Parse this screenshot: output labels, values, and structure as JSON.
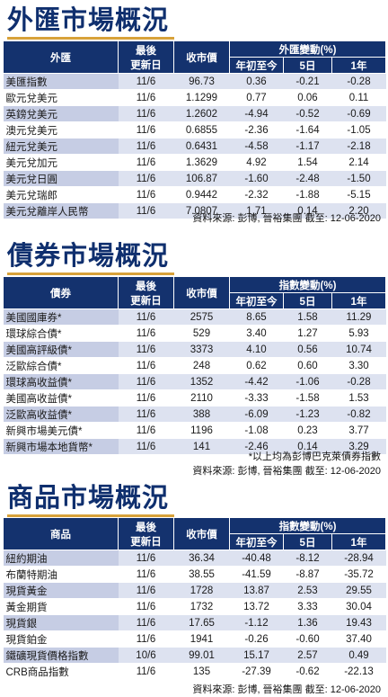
{
  "fx": {
    "title": "外匯市場概況",
    "headers": {
      "name": "外匯",
      "date_line1": "最後",
      "date_line2": "更新日",
      "close": "收市價",
      "change_group": "外匯變動(%)",
      "ytd": "年初至今",
      "d5": "5日",
      "y1": "1年"
    },
    "rows": [
      [
        "美匯指數",
        "11/6",
        "96.73",
        "0.36",
        "-0.21",
        "-0.28"
      ],
      [
        "歐元兌美元",
        "11/6",
        "1.1299",
        "0.77",
        "0.06",
        "0.11"
      ],
      [
        "英鎊兌美元",
        "11/6",
        "1.2602",
        "-4.94",
        "-0.52",
        "-0.69"
      ],
      [
        "澳元兌美元",
        "11/6",
        "0.6855",
        "-2.36",
        "-1.64",
        "-1.05"
      ],
      [
        "紐元兌美元",
        "11/6",
        "0.6431",
        "-4.58",
        "-1.17",
        "-2.18"
      ],
      [
        "美元兌加元",
        "11/6",
        "1.3629",
        "4.92",
        "1.54",
        "2.14"
      ],
      [
        "美元兌日圓",
        "11/6",
        "106.87",
        "-1.60",
        "-2.48",
        "-1.50"
      ],
      [
        "美元兌瑞郎",
        "11/6",
        "0.9442",
        "-2.32",
        "-1.88",
        "-5.15"
      ],
      [
        "美元兌離岸人民幣",
        "11/6",
        "7.0807",
        "1.71",
        "0.14",
        "2.20"
      ]
    ],
    "source": "資料來源: 彭博, 晉裕集團 截至: 12-06-2020"
  },
  "bond": {
    "title": "債券市場概況",
    "headers": {
      "name": "債券",
      "date_line1": "最後",
      "date_line2": "更新日",
      "close": "收市價",
      "change_group": "指數變動(%)",
      "ytd": "年初至今",
      "d5": "5日",
      "y1": "1年"
    },
    "rows": [
      [
        "美國國庫券*",
        "11/6",
        "2575",
        "8.65",
        "1.58",
        "11.29"
      ],
      [
        "環球綜合債*",
        "11/6",
        "529",
        "3.40",
        "1.27",
        "5.93"
      ],
      [
        "美國高評級債*",
        "11/6",
        "3373",
        "4.10",
        "0.56",
        "10.74"
      ],
      [
        "泛歐綜合債*",
        "11/6",
        "248",
        "0.62",
        "0.60",
        "3.30"
      ],
      [
        "環球高收益債*",
        "11/6",
        "1352",
        "-4.42",
        "-1.06",
        "-0.28"
      ],
      [
        "美國高收益債*",
        "11/6",
        "2110",
        "-3.33",
        "-1.58",
        "1.53"
      ],
      [
        "泛歐高收益債*",
        "11/6",
        "388",
        "-6.09",
        "-1.23",
        "-0.82"
      ],
      [
        "新興市場美元債*",
        "11/6",
        "1196",
        "-1.08",
        "0.23",
        "3.77"
      ],
      [
        "新興市場本地貨幣*",
        "11/6",
        "141",
        "-2.46",
        "0.14",
        "3.29"
      ]
    ],
    "note": "*以上均為彭博巴克萊債券指數",
    "source": "資料來源: 彭博, 晉裕集團 截至: 12-06-2020"
  },
  "commodity": {
    "title": "商品市場概況",
    "headers": {
      "name": "商品",
      "date_line1": "最後",
      "date_line2": "更新日",
      "close": "收市價",
      "change_group": "指數變動(%)",
      "ytd": "年初至今",
      "d5": "5日",
      "y1": "1年"
    },
    "rows": [
      [
        "紐約期油",
        "11/6",
        "36.34",
        "-40.48",
        "-8.12",
        "-28.94"
      ],
      [
        "布蘭特期油",
        "11/6",
        "38.55",
        "-41.59",
        "-8.87",
        "-35.72"
      ],
      [
        "現貨黃金",
        "11/6",
        "1728",
        "13.87",
        "2.53",
        "29.55"
      ],
      [
        "黃金期貨",
        "11/6",
        "1732",
        "13.72",
        "3.33",
        "30.04"
      ],
      [
        "現貨銀",
        "11/6",
        "17.65",
        "-1.12",
        "1.36",
        "19.43"
      ],
      [
        "現貨鉑金",
        "11/6",
        "1941",
        "-0.26",
        "-0.60",
        "37.40"
      ],
      [
        "鐵礦現貨價格指數",
        "10/6",
        "99.01",
        "15.17",
        "2.57",
        "0.49"
      ],
      [
        "CRB商品指數",
        "11/6",
        "135",
        "-27.39",
        "-0.62",
        "-22.13"
      ]
    ],
    "source": "資料來源: 彭博, 晉裕集團 截至: 12-06-2020"
  },
  "colors": {
    "header_bg": "#14326e",
    "title_text": "#0f2f6e",
    "title_rule": "#d8a23a",
    "row_band": "#dde2f0"
  }
}
